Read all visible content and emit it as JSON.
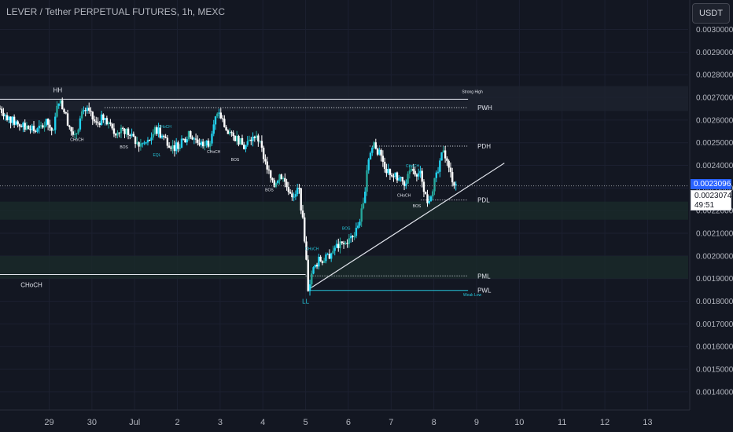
{
  "header": {
    "title": "LEVER / Tether PERPETUAL FUTURES, 1h, MEXC",
    "currency_button": "USDT"
  },
  "price_badges": {
    "last_price": "0.0023096",
    "bid_price": "0.0023074",
    "countdown": "49:51"
  },
  "colors": {
    "background": "#131722",
    "up": "#26a69a",
    "up_bright": "#22d1ee",
    "down": "#ffffff",
    "accent": "#2962ff",
    "grid": "#1c2030"
  },
  "chart_data": {
    "type": "candlestick",
    "y_ticks": [
      "0.0014000",
      "0.0015000",
      "0.0016000",
      "0.0017000",
      "0.0018000",
      "0.0019000",
      "0.0020000",
      "0.0021000",
      "0.0022000",
      "0.0023000",
      "0.0024000",
      "0.0025000",
      "0.0026000",
      "0.0027000",
      "0.0028000",
      "0.0029000",
      "0.0030000"
    ],
    "y_tick_values": [
      0.0014,
      0.0015,
      0.0016,
      0.0017,
      0.0018,
      0.0019,
      0.002,
      0.0021,
      0.0022,
      0.0023,
      0.0024,
      0.0025,
      0.0026,
      0.0027,
      0.0028,
      0.0029,
      0.003
    ],
    "ylim": [
      0.00132,
      0.00313
    ],
    "x_ticks": [
      "29",
      "30",
      "Jul",
      "2",
      "3",
      "4",
      "5",
      "6",
      "7",
      "8",
      "9",
      "10",
      "11",
      "12",
      "13"
    ],
    "x_tick_days": [
      -2,
      -1,
      0,
      1,
      2,
      3,
      4,
      5,
      6,
      7,
      8,
      9,
      10,
      11,
      12
    ],
    "xlim": [
      -3.15,
      12.95
    ],
    "last_price": 0.0023096,
    "path": [
      [
        -3.15,
        0.00265
      ],
      [
        -2.9,
        0.0026
      ],
      [
        -2.6,
        0.00257
      ],
      [
        -2.3,
        0.00255
      ],
      [
        -2.05,
        0.00259
      ],
      [
        -1.9,
        0.00254
      ],
      [
        -1.8,
        0.0027
      ],
      [
        -1.65,
        0.00264
      ],
      [
        -1.5,
        0.00256
      ],
      [
        -1.4,
        0.00252
      ],
      [
        -1.25,
        0.00262
      ],
      [
        -1.1,
        0.00264
      ],
      [
        -0.9,
        0.00258
      ],
      [
        -0.7,
        0.00262
      ],
      [
        -0.5,
        0.00254
      ],
      [
        -0.3,
        0.00257
      ],
      [
        -0.1,
        0.00253
      ],
      [
        0.1,
        0.00249
      ],
      [
        0.3,
        0.0025
      ],
      [
        0.5,
        0.00256
      ],
      [
        0.7,
        0.00252
      ],
      [
        0.9,
        0.00248
      ],
      [
        1.1,
        0.0025
      ],
      [
        1.3,
        0.00254
      ],
      [
        1.5,
        0.0025
      ],
      [
        1.75,
        0.0025
      ],
      [
        1.85,
        0.0026
      ],
      [
        2.0,
        0.00262
      ],
      [
        2.2,
        0.00253
      ],
      [
        2.4,
        0.00252
      ],
      [
        2.55,
        0.00248
      ],
      [
        2.7,
        0.00251
      ],
      [
        2.85,
        0.00254
      ],
      [
        3.0,
        0.00245
      ],
      [
        3.1,
        0.00239
      ],
      [
        3.25,
        0.0023
      ],
      [
        3.4,
        0.00237
      ],
      [
        3.55,
        0.00231
      ],
      [
        3.7,
        0.00227
      ],
      [
        3.85,
        0.00229
      ],
      [
        4.0,
        0.00204
      ],
      [
        4.05,
        0.00185
      ],
      [
        4.15,
        0.00193
      ],
      [
        4.3,
        0.00198
      ],
      [
        4.5,
        0.00199
      ],
      [
        4.7,
        0.00204
      ],
      [
        4.9,
        0.00205
      ],
      [
        5.1,
        0.00208
      ],
      [
        5.2,
        0.00212
      ],
      [
        5.35,
        0.00222
      ],
      [
        5.45,
        0.00242
      ],
      [
        5.6,
        0.0025
      ],
      [
        5.75,
        0.00244
      ],
      [
        5.9,
        0.00238
      ],
      [
        6.1,
        0.00235
      ],
      [
        6.3,
        0.00232
      ],
      [
        6.5,
        0.00238
      ],
      [
        6.7,
        0.00236
      ],
      [
        6.85,
        0.00223
      ],
      [
        7.0,
        0.00232
      ],
      [
        7.12,
        0.00238
      ],
      [
        7.22,
        0.00248
      ],
      [
        7.35,
        0.00238
      ],
      [
        7.48,
        0.00232
      ],
      [
        7.55,
        0.00231
      ]
    ],
    "horizontal_levels": [
      {
        "name": "Strong High",
        "label": "Strong High",
        "value": 0.002692,
        "style": "solid"
      },
      {
        "name": "PWH",
        "label": "PWH",
        "value": 0.002655,
        "style": "dotted"
      },
      {
        "name": "PDH",
        "label": "PDH",
        "value": 0.002485,
        "style": "dotted"
      },
      {
        "name": "PDL",
        "label": "PDL",
        "value": 0.002247,
        "style": "dotted"
      },
      {
        "name": "PML",
        "label": "PML",
        "value": 0.001912,
        "style": "dotted"
      },
      {
        "name": "PWL",
        "label": "PWL",
        "value": 0.001848,
        "style": "solid"
      },
      {
        "name": "CHoCH",
        "label": "CHoCH",
        "value": 0.001918,
        "style": "solid"
      }
    ],
    "annotations": [
      {
        "text": "HH",
        "day": -1.8,
        "value": 0.002722
      },
      {
        "text": "LL",
        "day": 4.0,
        "value": 0.00179
      },
      {
        "text": "Weak Low",
        "day": 7.9,
        "value": 0.001822
      },
      {
        "text": "CHoCH",
        "day": -1.35,
        "value": 0.002508
      },
      {
        "text": "BOS",
        "day": -0.25,
        "value": 0.002475
      },
      {
        "text": "CHoCH",
        "day": 0.7,
        "value": 0.002565
      },
      {
        "text": "EQL",
        "day": 0.52,
        "value": 0.00244
      },
      {
        "text": "CHoCH",
        "day": 1.85,
        "value": 0.002454
      },
      {
        "text": "BOS",
        "day": 2.35,
        "value": 0.00242
      },
      {
        "text": "BOS",
        "day": 3.15,
        "value": 0.002285
      },
      {
        "text": "CHoCH",
        "day": 4.15,
        "value": 0.002025
      },
      {
        "text": "BOS",
        "day": 4.95,
        "value": 0.002115
      },
      {
        "text": "CHoCH",
        "day": 6.5,
        "value": 0.002392
      },
      {
        "text": "CHoCH",
        "day": 6.3,
        "value": 0.002262
      },
      {
        "text": "BOS",
        "day": 6.6,
        "value": 0.002215
      }
    ],
    "trendline": {
      "start": [
        4.05,
        0.00185
      ],
      "end": [
        8.65,
        0.00241
      ]
    }
  }
}
